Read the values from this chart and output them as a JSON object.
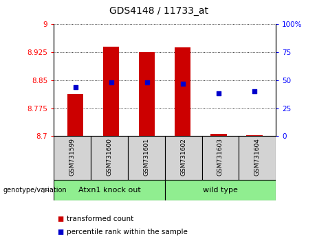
{
  "title": "GDS4148 / 11733_at",
  "samples": [
    "GSM731599",
    "GSM731600",
    "GSM731601",
    "GSM731602",
    "GSM731603",
    "GSM731604"
  ],
  "transformed_count": [
    8.812,
    8.94,
    8.925,
    8.938,
    8.706,
    8.703
  ],
  "percentile_rank": [
    44,
    48,
    48,
    47,
    38,
    40
  ],
  "bar_base": 8.7,
  "ylim_left": [
    8.7,
    9.0
  ],
  "ylim_right": [
    0,
    100
  ],
  "yticks_left": [
    8.7,
    8.775,
    8.85,
    8.925,
    9.0
  ],
  "ytick_labels_left": [
    "8.7",
    "8.775",
    "8.85",
    "8.925",
    "9"
  ],
  "yticks_right": [
    0,
    25,
    50,
    75,
    100
  ],
  "ytick_labels_right": [
    "0",
    "25",
    "50",
    "75",
    "100%"
  ],
  "groups": [
    {
      "label": "Atxn1 knock out",
      "color": "#90ee90",
      "start": 0,
      "end": 3
    },
    {
      "label": "wild type",
      "color": "#90ee90",
      "start": 3,
      "end": 6
    }
  ],
  "group_label_prefix": "genotype/variation",
  "bar_color": "#cc0000",
  "dot_color": "#0000cc",
  "bar_width": 0.45,
  "background_plot": "#ffffff",
  "background_label": "#d3d3d3",
  "legend_items": [
    "transformed count",
    "percentile rank within the sample"
  ],
  "legend_colors": [
    "#cc0000",
    "#0000cc"
  ]
}
